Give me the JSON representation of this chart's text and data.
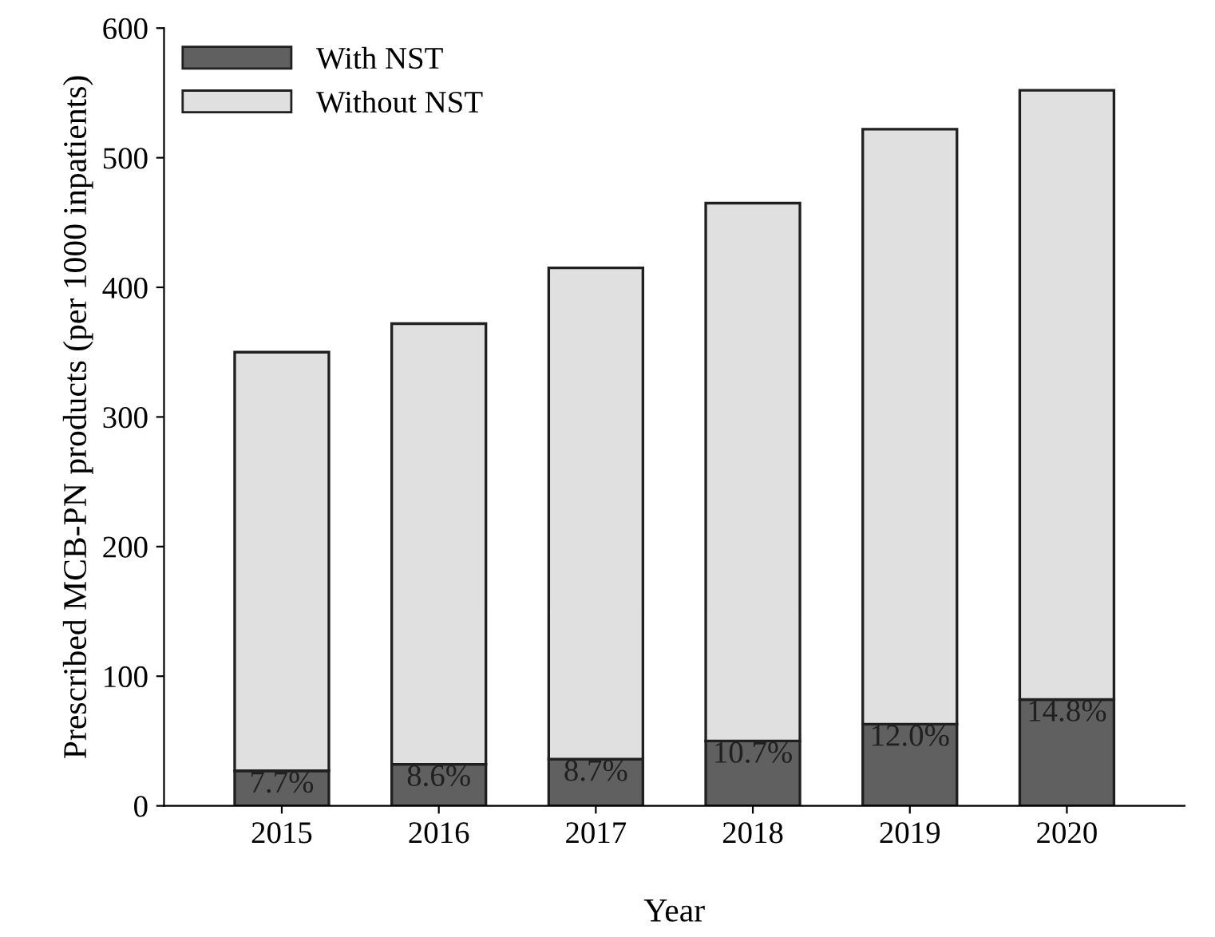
{
  "chart_data": {
    "type": "bar",
    "stacked": true,
    "xlabel": "Year",
    "ylabel": "Prescribed MCB-PN products (per 1000 inpatients)",
    "categories": [
      "2015",
      "2016",
      "2017",
      "2018",
      "2019",
      "2020"
    ],
    "series": [
      {
        "name": "With NST",
        "color": "#606060",
        "values": [
          27,
          32,
          36,
          50,
          63,
          82
        ]
      },
      {
        "name": "Without NST",
        "color": "#e0e0e0",
        "values": [
          323,
          340,
          379,
          415,
          459,
          470
        ]
      }
    ],
    "annotations": [
      {
        "text": "7.7%",
        "x": "2015",
        "y": 27
      },
      {
        "text": "8.6%",
        "x": "2016",
        "y": 32
      },
      {
        "text": "8.7%",
        "x": "2017",
        "y": 36
      },
      {
        "text": "10.7%",
        "x": "2018",
        "y": 50
      },
      {
        "text": "12.0%",
        "x": "2019",
        "y": 63
      },
      {
        "text": "14.8%",
        "x": "2020",
        "y": 82
      }
    ],
    "ylim": [
      0,
      600
    ],
    "yticks": [
      0,
      100,
      200,
      300,
      400,
      500,
      600
    ],
    "grid": false,
    "legend": "top left"
  }
}
